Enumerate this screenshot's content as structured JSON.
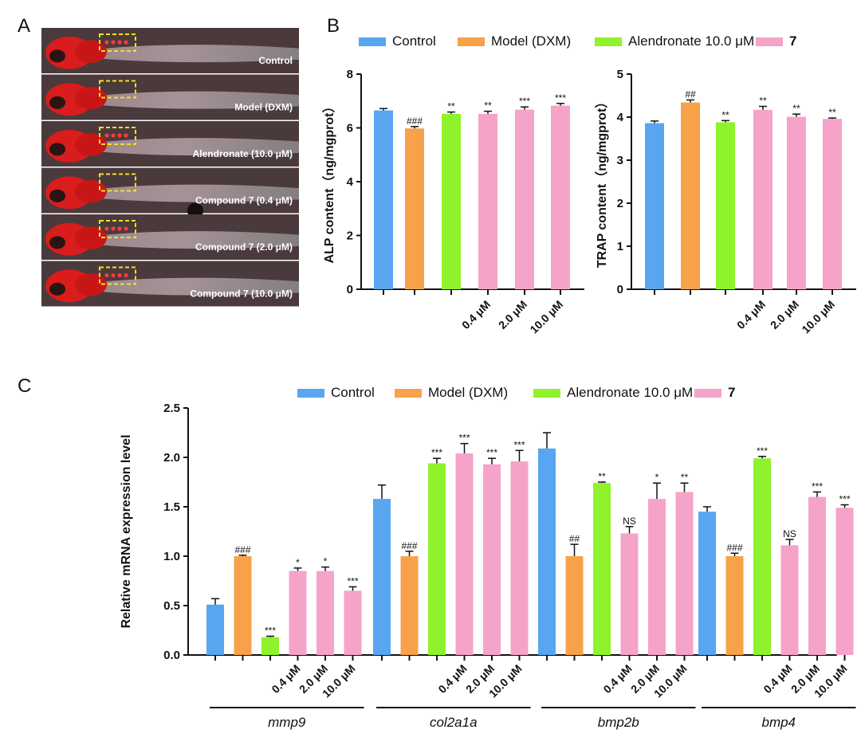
{
  "panels": {
    "a": "A",
    "b": "B",
    "c": "C"
  },
  "legend": [
    {
      "label": "Control",
      "color": "#58a6ef"
    },
    {
      "label": "Model (DXM)",
      "color": "#f7a24a"
    },
    {
      "label": "Alendronate 10.0 μM",
      "color": "#8ff22a"
    },
    {
      "label": "7",
      "color": "#f5a3c9",
      "bold": true
    }
  ],
  "image_strips": [
    "Control",
    "Model (DXM)",
    "Alendronate (10.0 μM)",
    "Compound 7 (0.4 μM)",
    "Compound 7 (2.0 μM)",
    "Compound 7 (10.0 μM)"
  ],
  "dose_labels": [
    "0.4 μM",
    "2.0 μM",
    "10.0 μM"
  ],
  "chart_data": [
    {
      "type": "bar",
      "ylabel": "ALP content（ng/mgprot）",
      "ylim": [
        0,
        8
      ],
      "yticks": [
        "0",
        "2",
        "4",
        "6",
        "8"
      ],
      "categories": [
        "Control",
        "Model (DXM)",
        "Alendronate 10.0 μM",
        "0.4 μM",
        "2.0 μM",
        "10.0 μM"
      ],
      "values": [
        6.65,
        5.98,
        6.52,
        6.52,
        6.68,
        6.83
      ],
      "errors": [
        0.07,
        0.07,
        0.07,
        0.1,
        0.1,
        0.08
      ],
      "significance": [
        "",
        "###",
        "**",
        "**",
        "***",
        "***"
      ]
    },
    {
      "type": "bar",
      "ylabel": "TRAP content（ng/mgprot）",
      "ylim": [
        0,
        5
      ],
      "yticks": [
        "0",
        "1",
        "2",
        "3",
        "4",
        "5"
      ],
      "categories": [
        "Control",
        "Model (DXM)",
        "Alendronate 10.0 μM",
        "0.4 μM",
        "2.0 μM",
        "10.0 μM"
      ],
      "values": [
        3.86,
        4.34,
        3.88,
        4.17,
        4.01,
        3.96
      ],
      "errors": [
        0.05,
        0.06,
        0.04,
        0.08,
        0.06,
        0.02
      ],
      "significance": [
        "",
        "##",
        "**",
        "**",
        "**",
        "**"
      ]
    },
    {
      "type": "bar",
      "ylabel": "Relative mRNA expression level",
      "ylim": [
        0,
        2.5
      ],
      "yticks": [
        "0.0",
        "0.5",
        "1.0",
        "1.5",
        "2.0",
        "2.5"
      ],
      "categories": [
        "mmp9",
        "col2a1a",
        "bmp2b",
        "bmp4"
      ],
      "series": [
        {
          "name": "Control",
          "values": [
            0.51,
            1.58,
            2.09,
            1.45
          ],
          "errors": [
            0.06,
            0.14,
            0.16,
            0.05
          ],
          "significance": [
            "",
            "",
            "",
            ""
          ]
        },
        {
          "name": "Model (DXM)",
          "values": [
            1.0,
            1.0,
            1.0,
            1.0
          ],
          "errors": [
            0.01,
            0.05,
            0.12,
            0.03
          ],
          "significance": [
            "###",
            "###",
            "##",
            "###"
          ]
        },
        {
          "name": "Alendronate 10.0 μM",
          "values": [
            0.18,
            1.94,
            1.74,
            1.99
          ],
          "errors": [
            0.01,
            0.05,
            0.01,
            0.02
          ],
          "significance": [
            "***",
            "***",
            "**",
            "***"
          ]
        },
        {
          "name": "7 0.4 μM",
          "values": [
            0.85,
            2.04,
            1.23,
            1.11
          ],
          "errors": [
            0.03,
            0.1,
            0.07,
            0.06
          ],
          "significance": [
            "*",
            "***",
            "NS",
            "NS"
          ]
        },
        {
          "name": "7 2.0 μM",
          "values": [
            0.85,
            1.93,
            1.58,
            1.6
          ],
          "errors": [
            0.04,
            0.06,
            0.16,
            0.05
          ],
          "significance": [
            "*",
            "***",
            "*",
            "***"
          ]
        },
        {
          "name": "7 10.0 μM",
          "values": [
            0.65,
            1.96,
            1.65,
            1.49
          ],
          "errors": [
            0.04,
            0.11,
            0.09,
            0.03
          ],
          "significance": [
            "***",
            "***",
            "**",
            "***"
          ]
        }
      ]
    }
  ]
}
